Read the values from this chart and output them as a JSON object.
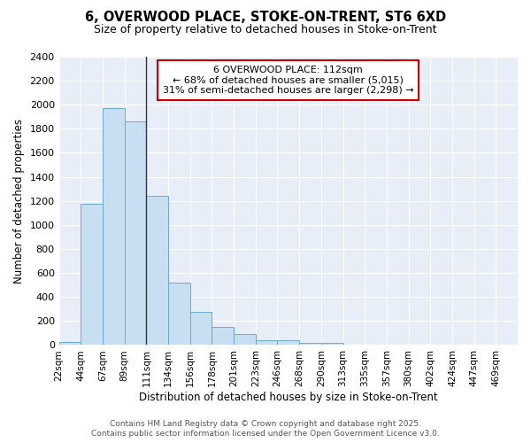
{
  "title_line1": "6, OVERWOOD PLACE, STOKE-ON-TRENT, ST6 6XD",
  "title_line2": "Size of property relative to detached houses in Stoke-on-Trent",
  "xlabel": "Distribution of detached houses by size in Stoke-on-Trent",
  "ylabel": "Number of detached properties",
  "bin_labels": [
    "22sqm",
    "44sqm",
    "67sqm",
    "89sqm",
    "111sqm",
    "134sqm",
    "156sqm",
    "178sqm",
    "201sqm",
    "223sqm",
    "246sqm",
    "268sqm",
    "290sqm",
    "313sqm",
    "335sqm",
    "357sqm",
    "380sqm",
    "402sqm",
    "424sqm",
    "447sqm",
    "469sqm"
  ],
  "bin_edges": [
    0,
    1,
    2,
    3,
    4,
    5,
    6,
    7,
    8,
    9,
    10,
    11,
    12,
    13,
    14,
    15,
    16,
    17,
    18,
    19,
    20,
    21
  ],
  "bar_heights": [
    25,
    1175,
    1975,
    1860,
    1240,
    520,
    275,
    150,
    90,
    40,
    40,
    20,
    15,
    5,
    5,
    3,
    3,
    3,
    2,
    2,
    2
  ],
  "bar_color": "#c8dff2",
  "bar_edge_color": "#6aaad4",
  "property_line_x": 4,
  "property_line_color": "#333333",
  "ylim": [
    0,
    2400
  ],
  "yticks": [
    0,
    200,
    400,
    600,
    800,
    1000,
    1200,
    1400,
    1600,
    1800,
    2000,
    2200,
    2400
  ],
  "annotation_text": "6 OVERWOOD PLACE: 112sqm\n← 68% of detached houses are smaller (5,015)\n31% of semi-detached houses are larger (2,298) →",
  "annotation_box_color": "#ffffff",
  "annotation_box_edge": "#cc0000",
  "plot_bg_color": "#e8eef8",
  "fig_bg_color": "#ffffff",
  "grid_color": "#ffffff",
  "footer_line1": "Contains HM Land Registry data © Crown copyright and database right 2025.",
  "footer_line2": "Contains public sector information licensed under the Open Government Licence v3.0."
}
